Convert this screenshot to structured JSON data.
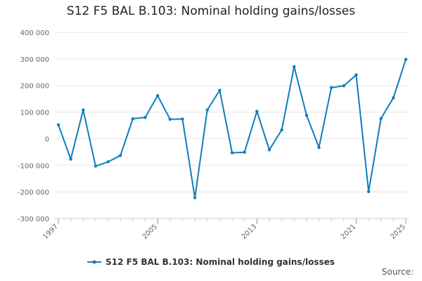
{
  "colors": {
    "series": "#0f7dbf",
    "grid": "#e6e6e6",
    "axis": "#cccccc"
  },
  "chart_data": {
    "type": "line",
    "title": "S12 F5 BAL B.103: Nominal holding gains/losses",
    "xlabel": "",
    "ylabel": "",
    "x": [
      1997,
      1998,
      1999,
      2000,
      2001,
      2002,
      2003,
      2004,
      2005,
      2006,
      2007,
      2008,
      2009,
      2010,
      2011,
      2012,
      2013,
      2014,
      2015,
      2016,
      2017,
      2018,
      2019,
      2020,
      2021,
      2022,
      2023,
      2024,
      2025
    ],
    "series": [
      {
        "name": "S12 F5 BAL B.103: Nominal holding gains/losses",
        "values": [
          52000,
          -77000,
          108000,
          -103000,
          -87000,
          -63000,
          75000,
          80000,
          162000,
          73000,
          74000,
          -222000,
          108000,
          182000,
          -53000,
          -51000,
          103000,
          -42000,
          33000,
          271000,
          88000,
          -33000,
          192000,
          199000,
          240000,
          -199000,
          76000,
          154000,
          298000
        ]
      }
    ],
    "ylim": [
      -300000,
      400000
    ],
    "yticks": [
      -300000,
      -200000,
      -100000,
      0,
      100000,
      200000,
      300000,
      400000
    ],
    "ytick_labels": [
      "-300 000",
      "-200 000",
      "-100 000",
      "0",
      "100 000",
      "200 000",
      "300 000",
      "400 000"
    ],
    "xticks": [
      1997,
      2005,
      2013,
      2021,
      2025
    ],
    "xtick_labels": [
      "1997",
      "2005",
      "2013",
      "2021",
      "2025"
    ],
    "legend_position": "bottom-center",
    "grid": true
  },
  "footer": {
    "source_label": "Source:"
  }
}
